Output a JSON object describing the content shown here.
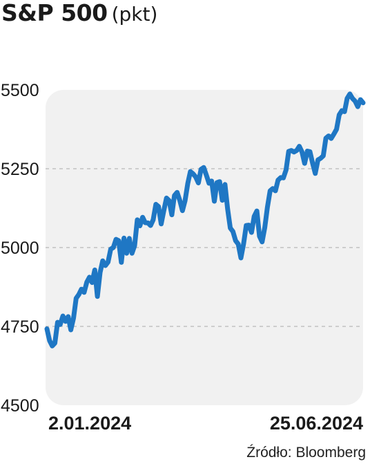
{
  "header": {
    "title": "S&P 500",
    "subtitle": "(pkt)"
  },
  "footer": {
    "source": "Źródło: Bloomberg"
  },
  "colors": {
    "line": "#1f77c4",
    "plot_bg": "#f1f1f1",
    "grid": "#b8b8b8",
    "text": "#1a1a1a"
  },
  "chart_data": {
    "type": "line",
    "title": "S&P 500",
    "subtitle": "(pkt)",
    "xlabel": "",
    "ylabel": "",
    "x_tick_labels": [
      "2.01.2024",
      "25.06.2024"
    ],
    "x_range": [
      "2024-01-02",
      "2024-06-25"
    ],
    "ylim": [
      4500,
      5500
    ],
    "yticks": [
      4500,
      4750,
      5000,
      5250,
      5500
    ],
    "grid": "horizontal dashed",
    "legend": "none",
    "series": [
      {
        "values": [
          4742,
          4705,
          4688,
          4697,
          4763,
          4756,
          4783,
          4766,
          4781,
          4739,
          4776,
          4839,
          4851,
          4868,
          4858,
          4890,
          4906,
          4889,
          4929,
          4845,
          4921,
          4958,
          4943,
          4954,
          4995,
          5000,
          5026,
          5022,
          4953,
          5030,
          4982,
          5029,
          4982,
          5006,
          5088,
          5069,
          5096,
          5079,
          5078,
          5070,
          5088,
          5137,
          5130,
          5075,
          5117,
          5157,
          5149,
          5104,
          5165,
          5175,
          5150,
          5117,
          5149,
          5203,
          5241,
          5234,
          5224,
          5205,
          5248,
          5254,
          5230,
          5204,
          5211,
          5147,
          5206,
          5209,
          5150,
          5200,
          5123,
          5062,
          5051,
          5022,
          5011,
          4967,
          5011,
          5070,
          5071,
          5048,
          5099,
          5116,
          5036,
          5018,
          5064,
          5128,
          5180,
          5187,
          5180,
          5214,
          5222,
          5221,
          5246,
          5305,
          5308,
          5303,
          5308,
          5321,
          5303,
          5267,
          5306,
          5304,
          5267,
          5235,
          5278,
          5283,
          5291,
          5347,
          5354,
          5346,
          5360,
          5375,
          5421,
          5434,
          5431,
          5473,
          5487,
          5473,
          5464,
          5447,
          5469,
          5459
        ]
      }
    ]
  }
}
